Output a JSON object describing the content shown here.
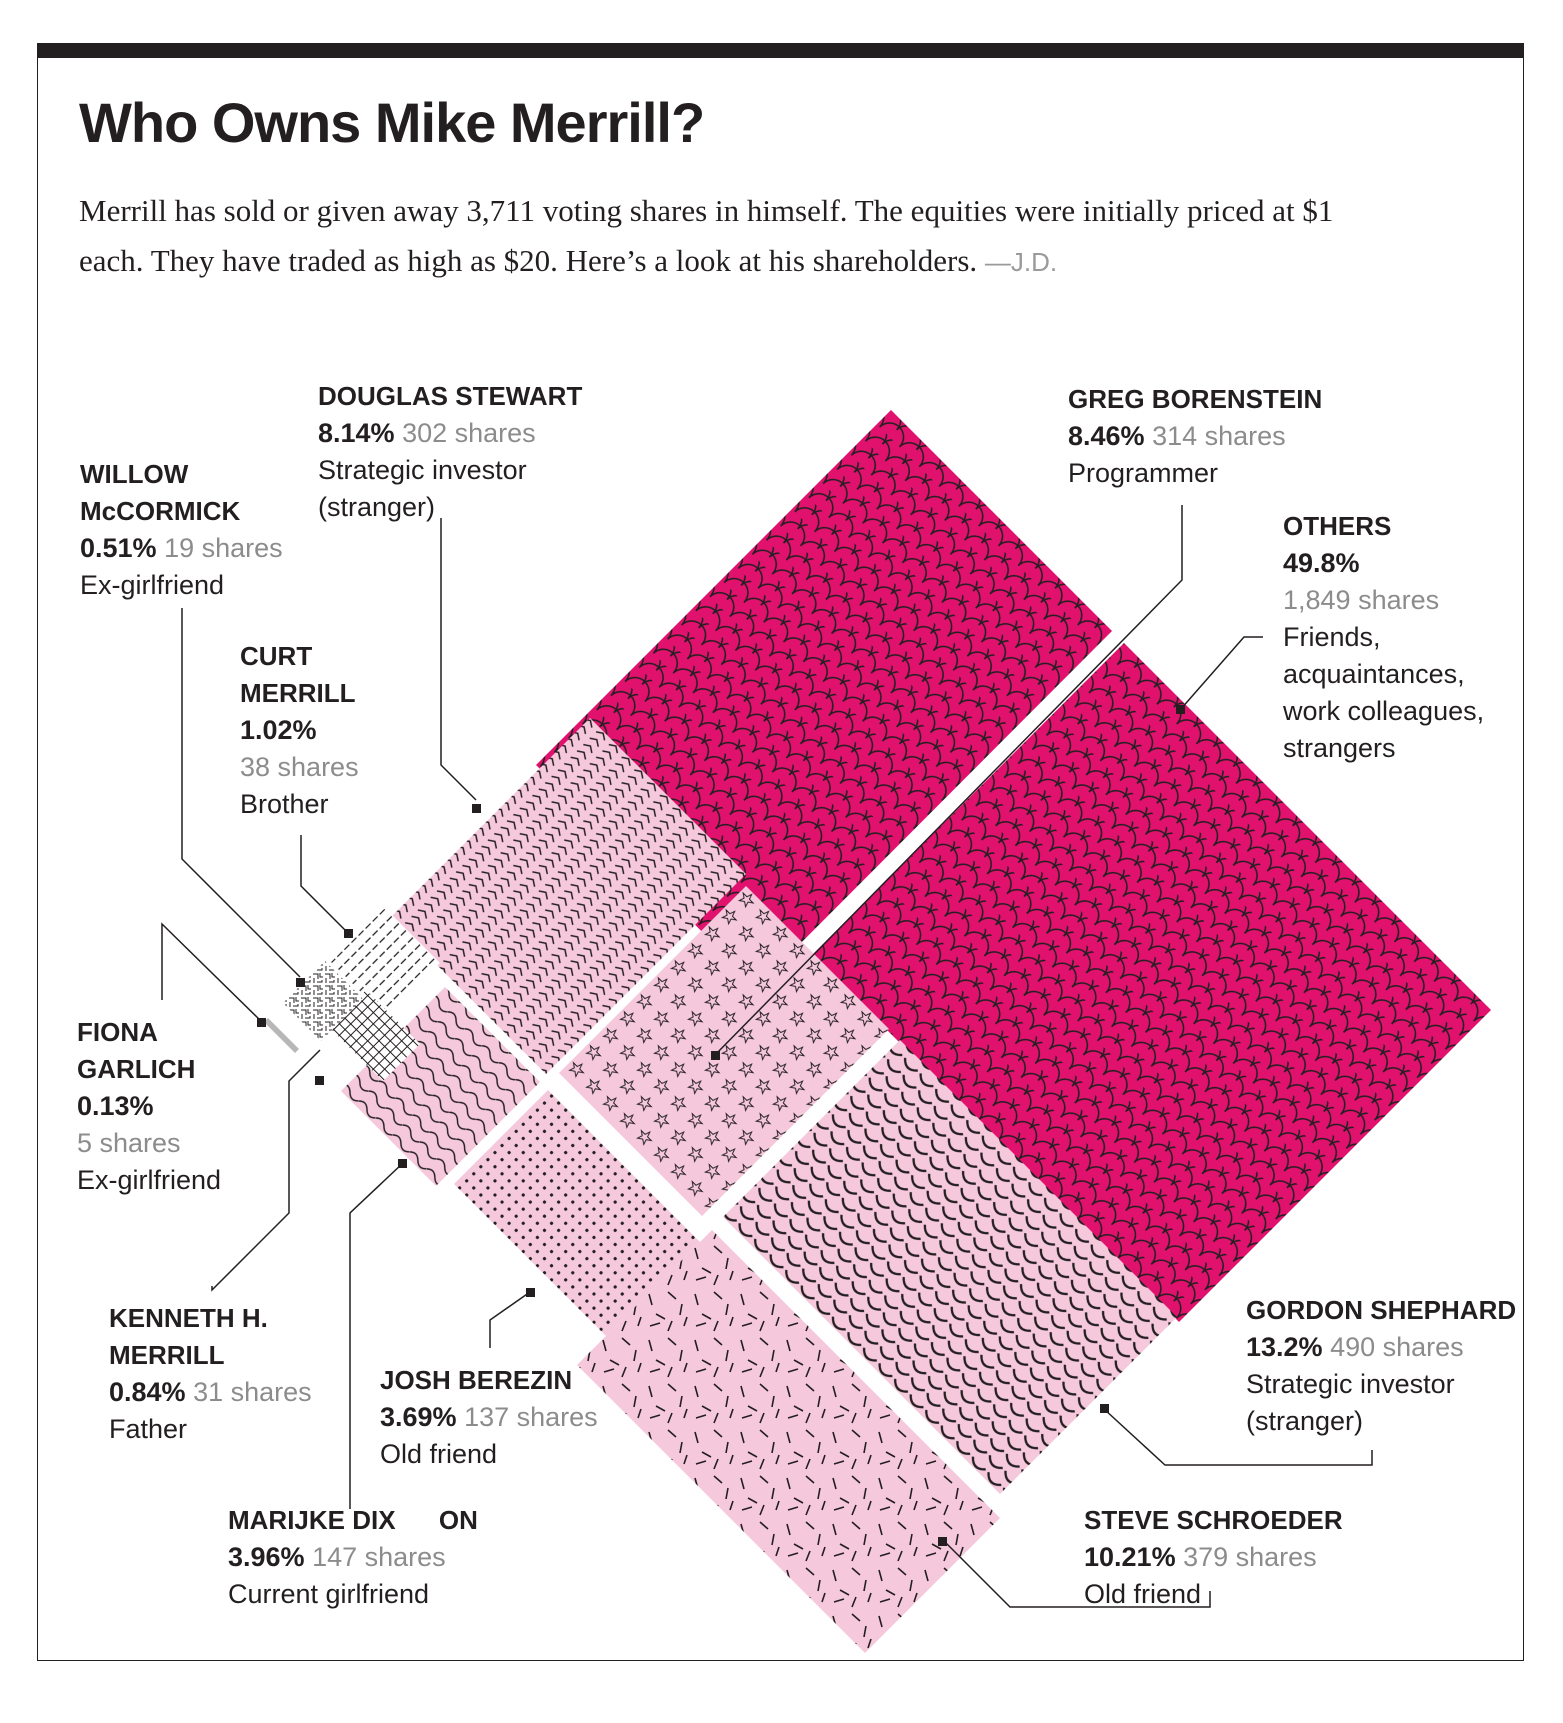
{
  "title": "Who Owns Mike Merrill?",
  "intro": "Merrill has sold or given away 3,711 voting shares in himself. The equities were initially priced at $1 each. They have traded as high as $20. Here’s a look at his shareholders.",
  "byline": "—J.D.",
  "colors": {
    "others": "#e0126e",
    "light": "#f6c8dc",
    "ink": "#231f20",
    "muted": "#8c8c8c"
  },
  "chart_data": {
    "type": "treemap",
    "total_shares": 3711,
    "holders": [
      {
        "name": "OTHERS",
        "percent": "49.8%",
        "shares": "1,849 shares",
        "shares_value": 1849,
        "desc": "Friends, acquaintances, work colleagues, strangers",
        "pattern": "scallop"
      },
      {
        "name": "GORDON SHEPHARD",
        "percent": "13.2%",
        "shares": "490 shares",
        "shares_value": 490,
        "desc": "Strategic investor (stranger)",
        "pattern": "arcs"
      },
      {
        "name": "STEVE SCHROEDER",
        "percent": "10.21%",
        "shares": "379 shares",
        "shares_value": 379,
        "desc": "Old friend",
        "pattern": "dashes"
      },
      {
        "name": "GREG BORENSTEIN",
        "percent": "8.46%",
        "shares": "314 shares",
        "shares_value": 314,
        "desc": "Programmer",
        "pattern": "stars"
      },
      {
        "name": "DOUGLAS STEWART",
        "percent": "8.14%",
        "shares": "302 shares",
        "shares_value": 302,
        "desc": "Strategic investor (stranger)",
        "pattern": "chevrons"
      },
      {
        "name": "MARIJKE DIXON",
        "percent": "3.96%",
        "shares": "147 shares",
        "shares_value": 147,
        "desc": "Current girlfriend",
        "pattern": "waves"
      },
      {
        "name": "JOSH BEREZIN",
        "percent": "3.69%",
        "shares": "137 shares",
        "shares_value": 137,
        "desc": "Old friend",
        "pattern": "dots"
      },
      {
        "name": "CURT MERRILL",
        "percent": "1.02%",
        "shares": "38 shares",
        "shares_value": 38,
        "desc": "Brother",
        "pattern": "vlines"
      },
      {
        "name": "KENNETH H. MERRILL",
        "percent": "0.84%",
        "shares": "31 shares",
        "shares_value": 31,
        "desc": "Father",
        "pattern": "grid"
      },
      {
        "name": "WILLOW McCORMICK",
        "percent": "0.51%",
        "shares": "19 shares",
        "shares_value": 19,
        "desc": "Ex-girlfriend",
        "pattern": "maze"
      },
      {
        "name": "FIONA GARLICH",
        "percent": "0.13%",
        "shares": "5 shares",
        "shares_value": 5,
        "desc": "Ex-girlfriend",
        "pattern": "solid-gray"
      }
    ]
  },
  "labels": {
    "douglas": {
      "name": "DOUGLAS STEWART",
      "pct": "8.14%",
      "shares": "302 shares",
      "d1": "Strategic investor",
      "d2": "(stranger)"
    },
    "greg": {
      "name": "GREG BORENSTEIN",
      "pct": "8.46%",
      "shares": "314 shares",
      "d1": "Programmer"
    },
    "willow": {
      "n1": "WILLOW",
      "n2": "McCORMICK",
      "pct": "0.51%",
      "shares": "19 shares",
      "d1": "Ex-girlfriend"
    },
    "others": {
      "name": "OTHERS",
      "pct": "49.8%",
      "shares": "1,849 shares",
      "d1": "Friends,",
      "d2": "acquaintances,",
      "d3": "work colleagues,",
      "d4": "strangers"
    },
    "curt": {
      "n1": "CURT",
      "n2": "MERRILL",
      "pct": "1.02%",
      "shares": "38 shares",
      "d1": "Brother"
    },
    "fiona": {
      "n1": "FIONA",
      "n2": "GARLICH",
      "pct": "0.13%",
      "shares": "5 shares",
      "d1": "Ex-girlfriend"
    },
    "kenneth": {
      "n1": "KENNETH H.",
      "n2": "MERRILL",
      "pct": "0.84%",
      "shares": "31 shares",
      "d1": "Father"
    },
    "josh": {
      "name": "JOSH BEREZIN",
      "pct": "3.69%",
      "shares": "137 shares",
      "d1": "Old friend"
    },
    "marijke": {
      "name": "MARIJKE DIX      ON",
      "pct": "3.96%",
      "shares": "147 shares",
      "d1": "Current girlfriend"
    },
    "gordon": {
      "name": "GORDON SHEPHARD",
      "pct": "13.2%",
      "shares": "490 shares",
      "d1": "Strategic investor",
      "d2": "(stranger)"
    },
    "steve": {
      "name": "STEVE SCHROEDER",
      "pct": "10.21%",
      "shares": "379 shares",
      "d1": "Old friend"
    }
  }
}
